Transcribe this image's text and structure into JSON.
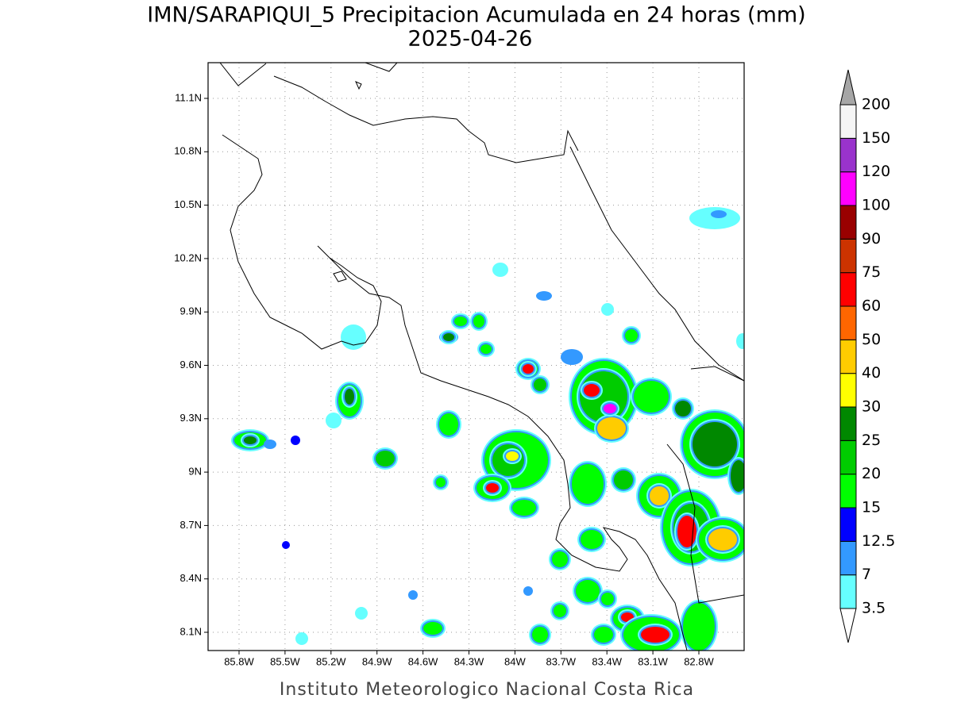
{
  "title": "IMN/SARAPIQUI_5 Precipitacion Acumulada en 24 horas (mm)",
  "subtitle": "2025-04-26",
  "map": {
    "lon_labels": [
      "85.8W",
      "85.5W",
      "85.2W",
      "84.9W",
      "84.6W",
      "84.3W",
      "84W",
      "83.7W",
      "83.4W",
      "83.1W",
      "82.8W"
    ],
    "lat_labels": [
      "11.1N",
      "10.8N",
      "10.5N",
      "10.2N",
      "9.9N",
      "9.6N",
      "9.3N",
      "9N",
      "8.7N",
      "8.4N",
      "8.1N"
    ]
  },
  "colorbar": {
    "levels": [
      3.5,
      7,
      12.5,
      15,
      20,
      25,
      30,
      40,
      50,
      60,
      75,
      90,
      100,
      120,
      150,
      200
    ],
    "colors": [
      "#66ffff",
      "#3399ff",
      "#0000ff",
      "#00ff00",
      "#00cc00",
      "#008800",
      "#ffff00",
      "#ffcc00",
      "#ff6600",
      "#ff0000",
      "#cc3300",
      "#990000",
      "#ff00ff",
      "#9933cc",
      "#f5f5f5"
    ],
    "under_color": "#ffffff",
    "over_color": "#a6a6a6"
  },
  "footer": "Instituto Meteorologico Nacional Costa Rica"
}
